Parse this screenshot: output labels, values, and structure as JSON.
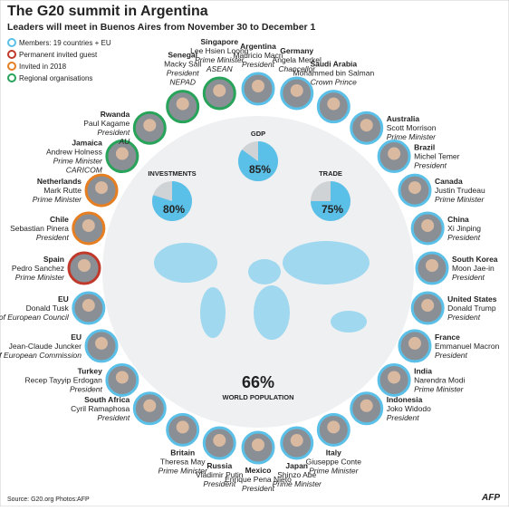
{
  "header": {
    "title": "The G20 summit in Argentina",
    "subtitle": "Leaders will meet in Buenos Aires from November 30 to December 1"
  },
  "legend": [
    {
      "label": "Members: 19 countries + EU",
      "color": "#5bc0e8"
    },
    {
      "label": "Permanent invited guest",
      "color": "#c0392b"
    },
    {
      "label": "Invited in 2018",
      "color": "#e67e22"
    },
    {
      "label": "Regional organisations",
      "color": "#27a35a"
    }
  ],
  "stats": [
    {
      "label": "GDP",
      "value": 85,
      "value_label": "85%"
    },
    {
      "label": "TRADE",
      "value": 75,
      "value_label": "75%"
    },
    {
      "label": "WORLD POPULATION",
      "value": 66,
      "value_label": "66%"
    },
    {
      "label": "INVESTMENTS",
      "value": 80,
      "value_label": "80%"
    }
  ],
  "leaders": [
    {
      "country": "Argentina",
      "name": "Mauricio Macri",
      "role": "President",
      "color": "#5bc0e8"
    },
    {
      "country": "Germany",
      "name": "Angela Merkel",
      "role": "Chancellor",
      "color": "#5bc0e8"
    },
    {
      "country": "Saudi Arabia",
      "name": "Mohammed bin Salman",
      "role": "Crown Prince",
      "color": "#5bc0e8"
    },
    {
      "country": "Australia",
      "name": "Scott Morrison",
      "role": "Prime Minister",
      "color": "#5bc0e8"
    },
    {
      "country": "Brazil",
      "name": "Michel Temer",
      "role": "President",
      "color": "#5bc0e8"
    },
    {
      "country": "Canada",
      "name": "Justin Trudeau",
      "role": "Prime Minister",
      "color": "#5bc0e8"
    },
    {
      "country": "China",
      "name": "Xi Jinping",
      "role": "President",
      "color": "#5bc0e8"
    },
    {
      "country": "South Korea",
      "name": "Moon Jae-in",
      "role": "President",
      "color": "#5bc0e8"
    },
    {
      "country": "United States",
      "name": "Donald Trump",
      "role": "President",
      "color": "#5bc0e8"
    },
    {
      "country": "France",
      "name": "Emmanuel Macron",
      "role": "President",
      "color": "#5bc0e8"
    },
    {
      "country": "India",
      "name": "Narendra Modi",
      "role": "Prime Minister",
      "color": "#5bc0e8"
    },
    {
      "country": "Indonesia",
      "name": "Joko Widodo",
      "role": "President",
      "color": "#5bc0e8"
    },
    {
      "country": "Italy",
      "name": "Giuseppe Conte",
      "role": "Prime Minister",
      "color": "#5bc0e8"
    },
    {
      "country": "Japan",
      "name": "Shinzo Abe",
      "role": "Prime Minister",
      "color": "#5bc0e8"
    },
    {
      "country": "Mexico",
      "name": "Enrique Pena Nieto",
      "role": "President",
      "color": "#5bc0e8"
    },
    {
      "country": "Russia",
      "name": "Vladimir Putin",
      "role": "President",
      "color": "#5bc0e8"
    },
    {
      "country": "Britain",
      "name": "Theresa May",
      "role": "Prime Minister",
      "color": "#5bc0e8"
    },
    {
      "country": "South Africa",
      "name": "Cyril Ramaphosa",
      "role": "President",
      "color": "#5bc0e8"
    },
    {
      "country": "Turkey",
      "name": "Recep Tayyip Erdogan",
      "role": "President",
      "color": "#5bc0e8"
    },
    {
      "country": "EU",
      "name": "Jean-Claude Juncker",
      "role": "President of European Commission",
      "color": "#5bc0e8"
    },
    {
      "country": "EU",
      "name": "Donald Tusk",
      "role": "President of European Council",
      "color": "#5bc0e8"
    },
    {
      "country": "Spain",
      "name": "Pedro Sanchez",
      "role": "Prime Minister",
      "color": "#c0392b"
    },
    {
      "country": "Chile",
      "name": "Sebastian Pinera",
      "role": "President",
      "color": "#e67e22"
    },
    {
      "country": "Netherlands",
      "name": "Mark Rutte",
      "role": "Prime Minister",
      "color": "#e67e22"
    },
    {
      "country": "Jamaica",
      "name": "Andrew Holness",
      "role": "Prime Minister",
      "org": "CARICOM",
      "color": "#27a35a"
    },
    {
      "country": "Rwanda",
      "name": "Paul Kagame",
      "role": "President",
      "org": "AU",
      "color": "#27a35a"
    },
    {
      "country": "Senegal",
      "name": "Macky Sall",
      "role": "President",
      "org": "NEPAD",
      "color": "#27a35a"
    },
    {
      "country": "Singapore",
      "name": "Lee Hsien Loong",
      "role": "Prime Minister",
      "org": "ASEAN",
      "color": "#27a35a"
    }
  ],
  "footer": {
    "source": "Source: G20.org    Photos:AFP",
    "logo": "AFP"
  }
}
